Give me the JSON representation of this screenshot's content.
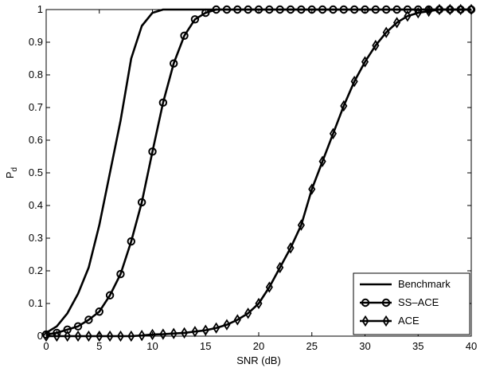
{
  "chart_data": {
    "type": "line",
    "xlabel": "SNR (dB)",
    "ylabel_main": "P",
    "ylabel_sub": "d",
    "xlim": [
      0,
      40
    ],
    "ylim": [
      0,
      1
    ],
    "xticks": [
      0,
      5,
      10,
      15,
      20,
      25,
      30,
      35,
      40
    ],
    "yticks": [
      0,
      0.1,
      0.2,
      0.3,
      0.4,
      0.5,
      0.6,
      0.7,
      0.8,
      0.9,
      1
    ],
    "xtick_labels": [
      "0",
      "5",
      "10",
      "15",
      "20",
      "25",
      "30",
      "35",
      "40"
    ],
    "ytick_labels": [
      "0",
      "0.1",
      "0.2",
      "0.3",
      "0.4",
      "0.5",
      "0.6",
      "0.7",
      "0.8",
      "0.9",
      "1"
    ],
    "legend_position": "bottom-right",
    "x": [
      0,
      1,
      2,
      3,
      4,
      5,
      6,
      7,
      8,
      9,
      10,
      11,
      12,
      13,
      14,
      15,
      16,
      17,
      18,
      19,
      20,
      21,
      22,
      23,
      24,
      25,
      26,
      27,
      28,
      29,
      30,
      31,
      32,
      33,
      34,
      35,
      36,
      37,
      38,
      39,
      40
    ],
    "series": [
      {
        "name": "Benchmark",
        "marker": "none",
        "values": [
          0.01,
          0.03,
          0.07,
          0.13,
          0.21,
          0.34,
          0.5,
          0.66,
          0.85,
          0.95,
          0.99,
          1,
          1,
          1,
          1,
          1,
          1,
          1,
          1,
          1,
          1,
          1,
          1,
          1,
          1,
          1,
          1,
          1,
          1,
          1,
          1,
          1,
          1,
          1,
          1,
          1,
          1,
          1,
          1,
          1,
          1
        ]
      },
      {
        "name": "SS–ACE",
        "marker": "circle",
        "values": [
          0.005,
          0.01,
          0.02,
          0.03,
          0.05,
          0.075,
          0.125,
          0.19,
          0.29,
          0.41,
          0.565,
          0.715,
          0.835,
          0.92,
          0.97,
          0.99,
          1,
          1,
          1,
          1,
          1,
          1,
          1,
          1,
          1,
          1,
          1,
          1,
          1,
          1,
          1,
          1,
          1,
          1,
          1,
          1,
          1,
          1,
          1,
          1,
          1
        ]
      },
      {
        "name": "ACE",
        "marker": "diamond",
        "values": [
          0,
          0,
          0,
          0,
          0,
          0,
          0,
          0,
          0,
          0.002,
          0.005,
          0.006,
          0.008,
          0.01,
          0.014,
          0.018,
          0.025,
          0.035,
          0.05,
          0.07,
          0.1,
          0.15,
          0.21,
          0.27,
          0.34,
          0.45,
          0.535,
          0.62,
          0.705,
          0.78,
          0.84,
          0.89,
          0.93,
          0.96,
          0.98,
          0.99,
          0.995,
          1,
          1,
          1,
          1
        ]
      }
    ]
  }
}
